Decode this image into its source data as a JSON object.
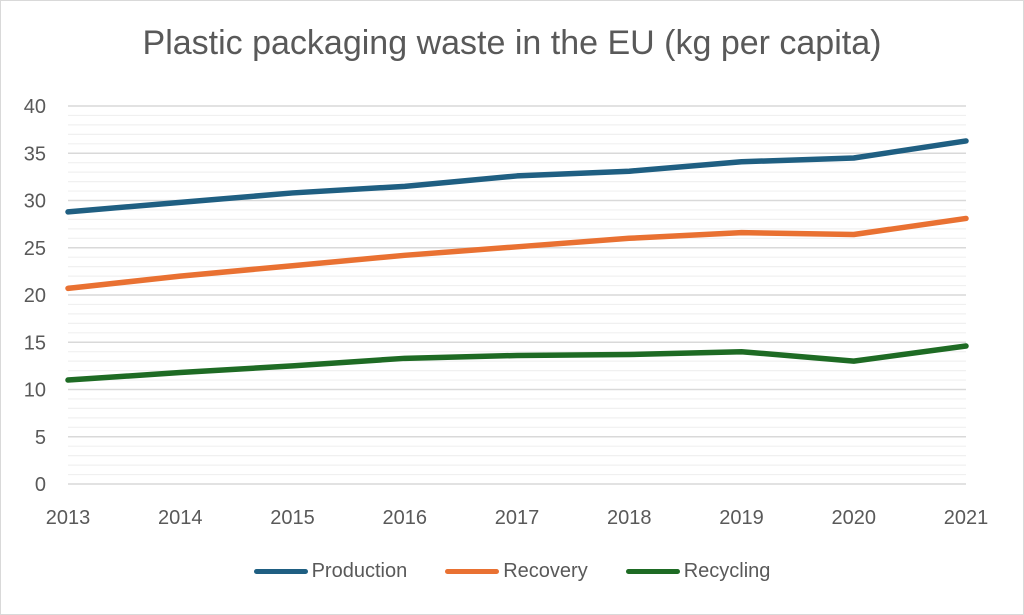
{
  "chart_data": {
    "type": "line",
    "title": "Plastic packaging waste in the EU (kg per capita)",
    "xlabel": "",
    "ylabel": "",
    "x": [
      "2013",
      "2014",
      "2015",
      "2016",
      "2017",
      "2018",
      "2019",
      "2020",
      "2021"
    ],
    "ylim": [
      0,
      40
    ],
    "yticks": [
      "0",
      "5",
      "10",
      "15",
      "20",
      "25",
      "30",
      "35",
      "40"
    ],
    "grid": "horizontal major every 5, minor every 1",
    "legend_position": "bottom",
    "series": [
      {
        "name": "Production",
        "color": "#1f5f82",
        "values": [
          28.8,
          29.8,
          30.8,
          31.5,
          32.6,
          33.1,
          34.1,
          34.5,
          36.3
        ]
      },
      {
        "name": "Recovery",
        "color": "#e97132",
        "values": [
          20.7,
          22.0,
          23.1,
          24.2,
          25.1,
          26.0,
          26.6,
          26.4,
          28.1
        ]
      },
      {
        "name": "Recycling",
        "color": "#1e6b24",
        "values": [
          11.0,
          11.8,
          12.5,
          13.3,
          13.6,
          13.7,
          14.0,
          13.0,
          14.6
        ]
      }
    ]
  }
}
